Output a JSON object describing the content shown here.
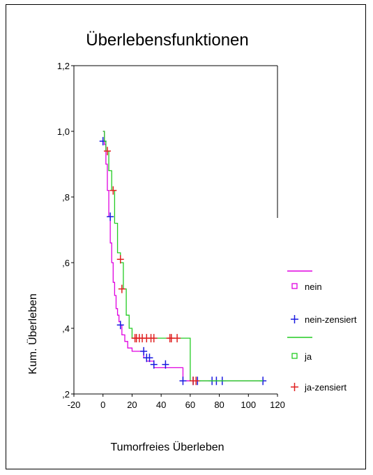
{
  "chart_data": {
    "type": "line",
    "subtype": "kaplan-meier step",
    "title": "Überlebensfunktionen",
    "xlabel": "Tumorfreies Überleben",
    "ylabel": "Kum. Überleben",
    "xlim": [
      -20,
      120
    ],
    "ylim": [
      0.2,
      1.2
    ],
    "x_ticks": [
      "-20",
      "0",
      "20",
      "40",
      "60",
      "80",
      "100",
      "120"
    ],
    "y_ticks": [
      ",2",
      ",4",
      ",6",
      ",8",
      "1,0",
      "1,2"
    ],
    "grid": false,
    "legend_position": "right",
    "legend": [
      {
        "label": "nein",
        "marker": "line"
      },
      {
        "label": "nein",
        "marker": "square"
      },
      {
        "label": "nein-zensiert",
        "marker": "plus"
      },
      {
        "label": "ja",
        "marker": "line"
      },
      {
        "label": "ja",
        "marker": "square"
      },
      {
        "label": "ja-zensiert",
        "marker": "plus"
      }
    ],
    "series": [
      {
        "name": "nein",
        "color": "#e000e0",
        "censor_color": "#1a1ae0",
        "x": [
          0,
          1,
          2,
          3,
          4,
          5,
          6,
          7,
          8,
          9,
          10,
          11,
          12,
          13,
          15,
          17,
          20,
          28,
          30,
          35,
          55,
          110
        ],
        "y": [
          1.0,
          0.96,
          0.9,
          0.82,
          0.74,
          0.66,
          0.6,
          0.54,
          0.5,
          0.46,
          0.44,
          0.42,
          0.41,
          0.38,
          0.36,
          0.34,
          0.33,
          0.31,
          0.3,
          0.28,
          0.24,
          0.24
        ],
        "censored_x": [
          0,
          5,
          12,
          28,
          30,
          32,
          35,
          43,
          55,
          62,
          65,
          75,
          78,
          82,
          110
        ],
        "censored_y": [
          0.97,
          0.74,
          0.41,
          0.33,
          0.31,
          0.31,
          0.29,
          0.29,
          0.24,
          0.24,
          0.24,
          0.24,
          0.24,
          0.24,
          0.24
        ]
      },
      {
        "name": "ja",
        "color": "#22cc22",
        "censor_color": "#e02020",
        "x": [
          0,
          1,
          2,
          4,
          6,
          8,
          10,
          12,
          14,
          16,
          18,
          20,
          57,
          60,
          110
        ],
        "y": [
          1.0,
          0.97,
          0.94,
          0.88,
          0.82,
          0.72,
          0.63,
          0.6,
          0.52,
          0.44,
          0.4,
          0.37,
          0.37,
          0.24,
          0.24
        ],
        "censored_x": [
          3,
          7,
          12,
          13,
          22,
          23,
          25,
          27,
          30,
          33,
          35,
          46,
          47,
          51,
          62,
          64
        ],
        "censored_y": [
          0.94,
          0.82,
          0.61,
          0.52,
          0.37,
          0.37,
          0.37,
          0.37,
          0.37,
          0.37,
          0.37,
          0.37,
          0.37,
          0.37,
          0.24,
          0.24
        ]
      }
    ]
  }
}
